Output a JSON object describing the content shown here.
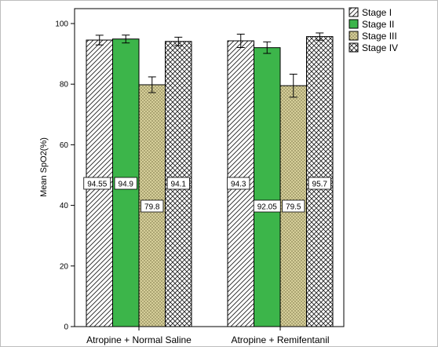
{
  "chart_data": {
    "type": "bar",
    "categories": [
      "Atropine + Normal Saline",
      "Atropine + Remifentanil"
    ],
    "series": [
      {
        "name": "Stage I",
        "values": [
          94.55,
          94.3
        ],
        "error": [
          1.6,
          2.2
        ],
        "data_labels": [
          "94.55",
          "94.3"
        ],
        "color": "#ffffff",
        "pattern": "diagonal-hatch"
      },
      {
        "name": "Stage II",
        "values": [
          94.9,
          92.05
        ],
        "error": [
          1.3,
          1.9
        ],
        "data_labels": [
          "94.9",
          "92.05"
        ],
        "color": "#3cb54a",
        "pattern": "solid"
      },
      {
        "name": "Stage III",
        "values": [
          79.8,
          79.5
        ],
        "error": [
          2.6,
          3.8
        ],
        "data_labels": [
          "79.8",
          "79.5"
        ],
        "color": "#d6cf9a",
        "pattern": "dotted"
      },
      {
        "name": "Stage IV",
        "values": [
          94.1,
          95.7
        ],
        "error": [
          1.4,
          1.2
        ],
        "data_labels": [
          "94.1",
          "95.7"
        ],
        "color": "#ffffff",
        "pattern": "crosshatch"
      }
    ],
    "title": "",
    "xlabel": "",
    "ylabel": "Mean SpO2(%)",
    "ylim": [
      0,
      100
    ],
    "yticks": [
      "0",
      "20",
      "40",
      "60",
      "80",
      "100"
    ],
    "grid": false,
    "legend_position": "top-right"
  }
}
